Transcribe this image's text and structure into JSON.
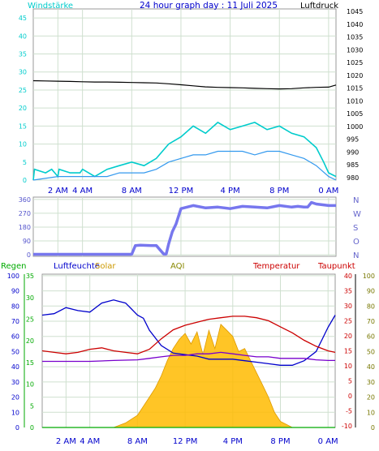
{
  "colors": {
    "wind": "#00cccc",
    "wind_avg": "#3399ee",
    "pressure": "#000000",
    "direction": "#7777ee",
    "humidity": "#0000cc",
    "solar": "#ffbb00",
    "temperature": "#cc0000",
    "dewpoint": "#7700cc",
    "rain": "#00aa00",
    "grid": "#cfe0cf",
    "frame": "#999999",
    "plot_bg": "#ffffff"
  },
  "chart_data": [
    {
      "type": "line",
      "title": "24 hour graph day : 11 Juli 2025",
      "left_label": "Windstärke",
      "right_label": "Luftdruck",
      "x_ticks": [
        "2 AM",
        "4 AM",
        "8 AM",
        "12 PM",
        "4 PM",
        "8 PM",
        "0 AM"
      ],
      "x_tick_hours": [
        2,
        4,
        8,
        12,
        16,
        20,
        24
      ],
      "x_range_hours": [
        0,
        24.6
      ],
      "y_left_ticks": [
        "0",
        "5",
        "10",
        "15",
        "20",
        "25",
        "30",
        "35",
        "40",
        "45"
      ],
      "y_left_range": [
        0,
        47.5
      ],
      "y_right_ticks": [
        "980",
        "985",
        "990",
        "995",
        "1000",
        "1005",
        "1010",
        "1015",
        "1020",
        "1025",
        "1030",
        "1035",
        "1040",
        "1045"
      ],
      "y_right_range": [
        979,
        1046
      ],
      "series": [
        {
          "key": "pressure",
          "axis": "right",
          "x": [
            0,
            1,
            2,
            3,
            4,
            5,
            6,
            7,
            8,
            9,
            10,
            11,
            12,
            13,
            14,
            15,
            16,
            17,
            18,
            19,
            20,
            21,
            22,
            23,
            24,
            24.6
          ],
          "y": [
            1017.9,
            1017.8,
            1017.7,
            1017.6,
            1017.5,
            1017.4,
            1017.4,
            1017.3,
            1017.2,
            1017.1,
            1017.0,
            1016.7,
            1016.3,
            1015.9,
            1015.5,
            1015.3,
            1015.2,
            1015.1,
            1014.9,
            1014.8,
            1014.7,
            1014.8,
            1015.1,
            1015.3,
            1015.4,
            1016.2
          ]
        },
        {
          "key": "wind",
          "axis": "left",
          "x": [
            0,
            0.1,
            1,
            1.5,
            2,
            2.1,
            3,
            3.8,
            4,
            5,
            6,
            7,
            8,
            9,
            10,
            11,
            12,
            13,
            14,
            15,
            16,
            17,
            18,
            19,
            20,
            21,
            22,
            23,
            23.6,
            24,
            24.6
          ],
          "y": [
            0,
            3,
            2,
            3,
            1,
            3,
            2,
            2,
            3,
            1,
            3,
            4,
            5,
            4,
            6,
            10,
            12,
            15,
            13,
            16,
            14,
            15,
            16,
            14,
            15,
            13,
            12,
            9,
            5,
            2,
            1
          ]
        },
        {
          "key": "wind_avg",
          "axis": "left",
          "x": [
            0,
            2,
            4,
            6,
            7,
            8,
            9,
            10,
            11,
            12,
            13,
            14,
            15,
            16,
            17,
            18,
            19,
            20,
            21,
            22,
            23,
            24,
            24.6
          ],
          "y": [
            0,
            1,
            1,
            1,
            2,
            2,
            2,
            3,
            5,
            6,
            7,
            7,
            8,
            8,
            8,
            7,
            8,
            8,
            7,
            6,
            4,
            1,
            0
          ]
        }
      ]
    },
    {
      "type": "scatter",
      "y_ticks": [
        "360",
        "270",
        "180",
        "90",
        "0"
      ],
      "y_tick_values": [
        360,
        270,
        180,
        90,
        0
      ],
      "y_range": [
        -10,
        375
      ],
      "compass": [
        "N",
        "W",
        "S",
        "O",
        "N"
      ],
      "series": [
        {
          "key": "direction",
          "x": [
            0,
            2,
            4,
            6,
            7,
            8,
            8.3,
            8.7,
            9.6,
            10,
            10.6,
            10.8,
            11,
            11.3,
            11.6,
            12,
            13,
            14,
            15,
            16,
            17,
            18,
            19,
            20,
            21,
            21.5,
            22,
            22.3,
            22.6,
            23,
            24,
            24.6
          ],
          "y": [
            3,
            3,
            3,
            3,
            3,
            3,
            60,
            63,
            60,
            60,
            5,
            5,
            70,
            150,
            200,
            300,
            320,
            305,
            310,
            300,
            315,
            310,
            305,
            320,
            310,
            315,
            310,
            310,
            340,
            330,
            320,
            320
          ]
        }
      ]
    },
    {
      "type": "line",
      "legend": [
        "Regen",
        "Luftfeuchte",
        "Solar",
        "AQI",
        "Temperatur",
        "Taupunkt"
      ],
      "x_ticks": [
        "2 AM",
        "4 AM",
        "8 AM",
        "12 PM",
        "4 PM",
        "8 PM",
        "0 AM"
      ],
      "x_tick_hours": [
        2,
        4,
        8,
        12,
        16,
        20,
        24
      ],
      "x_range_hours": [
        0,
        24.6
      ],
      "humidity_ticks": [
        "0",
        "10",
        "20",
        "30",
        "40",
        "50",
        "60",
        "70",
        "80",
        "90",
        "100"
      ],
      "humidity_range": [
        0,
        101
      ],
      "rain_ticks": [
        "0",
        "5",
        "10",
        "15",
        "20",
        "25",
        "30",
        "35"
      ],
      "rain_range": [
        0,
        35.4
      ],
      "temperature_ticks": [
        "-10",
        "-5",
        "0",
        "5",
        "10",
        "15",
        "20",
        "25",
        "30",
        "35",
        "40"
      ],
      "temperature_range": [
        -10.5,
        40.5
      ],
      "solar_ticks": [
        "0",
        "10",
        "20",
        "30",
        "40",
        "50",
        "60",
        "70",
        "80",
        "90",
        "100"
      ],
      "solar_range": [
        0,
        101
      ],
      "series": [
        {
          "key": "humidity",
          "axis": "humidity",
          "x": [
            0,
            1,
            2,
            3,
            4,
            5,
            6,
            6.5,
            7,
            7.5,
            8,
            8.5,
            9,
            10,
            11,
            12,
            13,
            14,
            15,
            16,
            17,
            18,
            19,
            20,
            21,
            22,
            23,
            23.5,
            24,
            24.6
          ],
          "y": [
            74,
            75,
            79,
            77,
            76,
            82,
            84,
            83,
            82,
            78,
            74,
            72,
            64,
            54,
            49,
            48,
            47,
            45,
            45,
            45,
            44,
            43,
            42,
            41,
            41,
            44,
            50,
            58,
            66,
            74
          ]
        },
        {
          "key": "temperature",
          "axis": "temperature",
          "x": [
            0,
            1,
            2,
            3,
            4,
            5,
            6,
            7,
            8,
            9,
            10,
            11,
            12,
            13,
            14,
            15,
            16,
            17,
            18,
            19,
            20,
            21,
            22,
            23,
            24,
            24.6
          ],
          "y": [
            15.0,
            14.5,
            14.0,
            14.5,
            15.5,
            16.0,
            15.0,
            14.5,
            14.0,
            15.5,
            19,
            22,
            23.5,
            24.5,
            25.5,
            26,
            26.5,
            26.5,
            26,
            25,
            23,
            21,
            18.5,
            16.5,
            15,
            14.5
          ]
        },
        {
          "key": "dewpoint",
          "axis": "temperature",
          "x": [
            0,
            2,
            4,
            6,
            8,
            9,
            10,
            11,
            12,
            13,
            14,
            15,
            16,
            17,
            18,
            19,
            20,
            21,
            22,
            23,
            24,
            24.6
          ],
          "y": [
            11.5,
            11.5,
            11.5,
            11.8,
            12.0,
            12.5,
            13.0,
            13.5,
            13.5,
            14.0,
            14.0,
            14.5,
            14.0,
            13.5,
            13.0,
            13.0,
            12.5,
            12.5,
            12.5,
            12.0,
            11.8,
            11.8
          ]
        },
        {
          "key": "solar",
          "axis": "solar",
          "x": [
            0,
            6,
            7,
            8,
            8.5,
            9,
            9.5,
            10,
            10.5,
            11,
            11.5,
            12,
            12.5,
            13,
            13.5,
            14,
            14.5,
            15,
            15.5,
            16,
            16.5,
            17,
            17.5,
            18,
            18.5,
            19,
            19.5,
            20,
            21,
            24.6
          ],
          "y": [
            0,
            0,
            3,
            8,
            14,
            20,
            26,
            34,
            44,
            52,
            58,
            62,
            55,
            63,
            48,
            64,
            52,
            68,
            64,
            60,
            50,
            52,
            44,
            36,
            28,
            20,
            10,
            4,
            0,
            0
          ]
        },
        {
          "key": "rain",
          "axis": "rain",
          "x": [
            0,
            24.6
          ],
          "y": [
            0,
            0
          ]
        }
      ]
    }
  ]
}
